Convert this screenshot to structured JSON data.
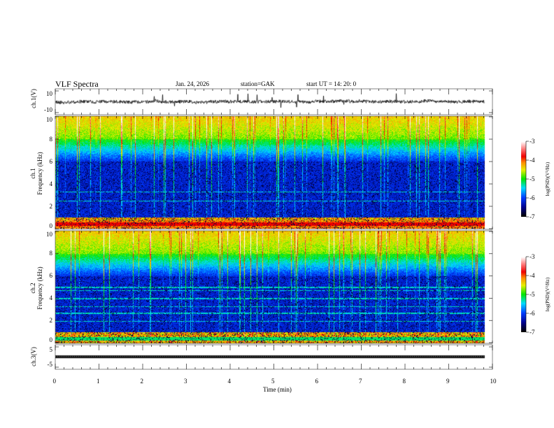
{
  "header": {
    "title": "VLF  Spectra",
    "date": "Jan. 24, 2026",
    "station": "station=GAK",
    "start": "start  UT =   14: 20: 0"
  },
  "colors": {
    "axis": "#000000",
    "background": "#ffffff"
  },
  "chart_data": [
    {
      "type": "line",
      "name": "ch1-waveform",
      "ylabel": "ch.1(V)",
      "ylim": [
        -10,
        10
      ],
      "yticks": [
        "10",
        "-10"
      ],
      "xlim": [
        0,
        10
      ],
      "data_end_min": 9.83,
      "description_values": {
        "mean": 0,
        "noise_amplitude": 1.5
      }
    },
    {
      "type": "heatmap",
      "name": "ch1-spectrogram",
      "ylabel": "ch.1\nFrequency (kHz)",
      "ylabel_line1": "ch.1",
      "ylabel_line2": "Frequency  (kHz)",
      "ylim": [
        0,
        10
      ],
      "yticks": [
        "0",
        "2",
        "4",
        "6",
        "8",
        "10"
      ],
      "xlim": [
        0,
        10
      ],
      "colorbar": {
        "label": "log(PSD)(V²/Hz)",
        "range": [
          -7,
          -3
        ],
        "ticks": [
          "-3",
          "-4",
          "-5",
          "-6",
          "-7"
        ]
      }
    },
    {
      "type": "heatmap",
      "name": "ch2-spectrogram",
      "ylabel_line1": "ch.2",
      "ylabel_line2": "Frequency  (kHz)",
      "ylim": [
        0,
        10
      ],
      "yticks": [
        "0",
        "2",
        "4",
        "6",
        "8",
        "10"
      ],
      "xlim": [
        0,
        10
      ],
      "colorbar": {
        "label": "log(PSD)(V²/Hz)",
        "range": [
          -7,
          -3
        ],
        "ticks": [
          "-3",
          "-4",
          "-5",
          "-6",
          "-7"
        ]
      }
    },
    {
      "type": "line",
      "name": "ch3-waveform",
      "ylabel": "ch.3(V)",
      "ylim": [
        -5,
        5
      ],
      "yticks": [
        "5",
        "-5"
      ],
      "xlim": [
        0,
        10
      ],
      "description_values": {
        "mean": 0.3
      }
    }
  ],
  "xaxis": {
    "label": "Time  (min)",
    "ticks": [
      "0",
      "1",
      "2",
      "3",
      "4",
      "5",
      "6",
      "7",
      "8",
      "9",
      "10"
    ]
  }
}
